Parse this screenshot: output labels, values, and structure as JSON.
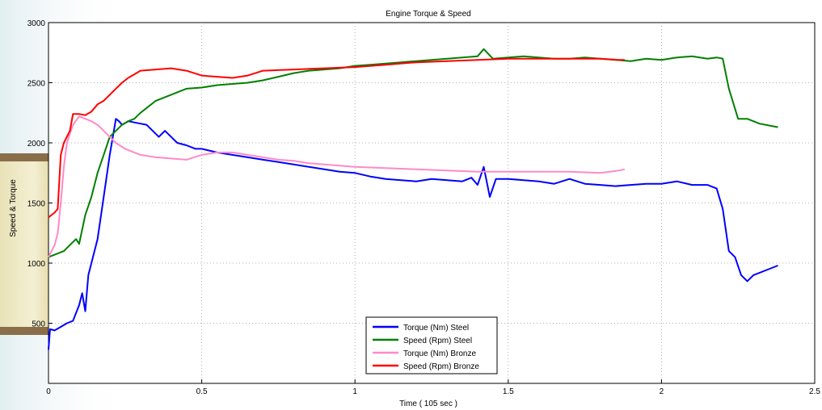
{
  "chart_data": {
    "type": "line",
    "title": "Engine Torque & Speed",
    "xlabel": "Time ( 105 sec )",
    "ylabel": "Speed & Torque",
    "xlim": [
      0,
      2.5
    ],
    "ylim": [
      0,
      3000
    ],
    "xticks": [
      0,
      0.5,
      1,
      1.5,
      2,
      2.5
    ],
    "xtick_labels": [
      "0",
      "0.5",
      "1",
      "1.5",
      "2",
      "2.5"
    ],
    "yticks": [
      500,
      1000,
      1500,
      2000,
      2500,
      3000
    ],
    "ytick_labels": [
      "500",
      "1000",
      "1500",
      "2000",
      "2500",
      "3000"
    ],
    "grid": true,
    "legend_position": "bottom-center",
    "series": [
      {
        "name": "Torque (Nm) Steel",
        "color": "#0000ff",
        "x": [
          0,
          0.005,
          0.02,
          0.04,
          0.06,
          0.08,
          0.1,
          0.11,
          0.12,
          0.13,
          0.14,
          0.16,
          0.18,
          0.2,
          0.22,
          0.23,
          0.24,
          0.26,
          0.28,
          0.3,
          0.32,
          0.34,
          0.36,
          0.38,
          0.4,
          0.42,
          0.45,
          0.48,
          0.5,
          0.55,
          0.6,
          0.65,
          0.7,
          0.75,
          0.8,
          0.85,
          0.9,
          0.95,
          1.0,
          1.05,
          1.1,
          1.15,
          1.2,
          1.25,
          1.3,
          1.35,
          1.38,
          1.4,
          1.42,
          1.44,
          1.46,
          1.5,
          1.55,
          1.6,
          1.65,
          1.7,
          1.75,
          1.8,
          1.85,
          1.9,
          1.95,
          2.0,
          2.05,
          2.1,
          2.15,
          2.18,
          2.2,
          2.22,
          2.24,
          2.26,
          2.28,
          2.3,
          2.35,
          2.38
        ],
        "y": [
          280,
          450,
          440,
          470,
          500,
          520,
          650,
          750,
          600,
          900,
          1000,
          1200,
          1550,
          1900,
          2200,
          2180,
          2150,
          2180,
          2170,
          2160,
          2150,
          2100,
          2050,
          2100,
          2050,
          2000,
          1980,
          1950,
          1950,
          1920,
          1900,
          1880,
          1860,
          1840,
          1820,
          1800,
          1780,
          1760,
          1750,
          1720,
          1700,
          1690,
          1680,
          1700,
          1690,
          1680,
          1710,
          1650,
          1800,
          1550,
          1700,
          1700,
          1690,
          1680,
          1660,
          1700,
          1660,
          1650,
          1640,
          1650,
          1660,
          1660,
          1680,
          1650,
          1650,
          1620,
          1450,
          1100,
          1050,
          900,
          850,
          900,
          950,
          980
        ]
      },
      {
        "name": "Speed (Rpm) Steel",
        "color": "#008000",
        "x": [
          0,
          0.01,
          0.03,
          0.05,
          0.07,
          0.09,
          0.1,
          0.12,
          0.14,
          0.16,
          0.18,
          0.2,
          0.22,
          0.24,
          0.26,
          0.28,
          0.3,
          0.35,
          0.4,
          0.45,
          0.5,
          0.55,
          0.6,
          0.65,
          0.7,
          0.75,
          0.8,
          0.85,
          0.9,
          0.95,
          1.0,
          1.05,
          1.1,
          1.15,
          1.2,
          1.25,
          1.3,
          1.35,
          1.4,
          1.42,
          1.45,
          1.5,
          1.55,
          1.6,
          1.65,
          1.7,
          1.75,
          1.8,
          1.85,
          1.9,
          1.95,
          2.0,
          2.05,
          2.1,
          2.15,
          2.18,
          2.2,
          2.22,
          2.25,
          2.28,
          2.32,
          2.36,
          2.38
        ],
        "y": [
          1050,
          1060,
          1080,
          1100,
          1150,
          1200,
          1160,
          1400,
          1550,
          1750,
          1900,
          2050,
          2100,
          2150,
          2180,
          2200,
          2250,
          2350,
          2400,
          2450,
          2460,
          2480,
          2490,
          2500,
          2520,
          2550,
          2580,
          2600,
          2610,
          2620,
          2640,
          2650,
          2660,
          2670,
          2680,
          2690,
          2700,
          2710,
          2720,
          2780,
          2700,
          2710,
          2720,
          2710,
          2700,
          2700,
          2710,
          2700,
          2690,
          2680,
          2700,
          2690,
          2710,
          2720,
          2700,
          2710,
          2700,
          2450,
          2200,
          2200,
          2160,
          2140,
          2130
        ]
      },
      {
        "name": "Torque (Nm) Bronze",
        "color": "#ff8ac8",
        "x": [
          0,
          0.01,
          0.02,
          0.03,
          0.04,
          0.05,
          0.06,
          0.08,
          0.1,
          0.12,
          0.14,
          0.16,
          0.18,
          0.2,
          0.22,
          0.25,
          0.3,
          0.35,
          0.4,
          0.45,
          0.5,
          0.55,
          0.6,
          0.65,
          0.7,
          0.75,
          0.8,
          0.85,
          0.9,
          0.95,
          1.0,
          1.1,
          1.2,
          1.3,
          1.4,
          1.5,
          1.6,
          1.7,
          1.8,
          1.86,
          1.88
        ],
        "y": [
          1050,
          1100,
          1150,
          1250,
          1500,
          1800,
          2000,
          2150,
          2220,
          2200,
          2180,
          2150,
          2100,
          2050,
          2000,
          1950,
          1900,
          1880,
          1870,
          1860,
          1900,
          1920,
          1920,
          1900,
          1880,
          1860,
          1850,
          1830,
          1820,
          1810,
          1800,
          1790,
          1780,
          1770,
          1760,
          1760,
          1760,
          1760,
          1750,
          1770,
          1780
        ]
      },
      {
        "name": "Speed (Rpm) Bronze",
        "color": "#ff0000",
        "x": [
          0,
          0.01,
          0.02,
          0.03,
          0.04,
          0.05,
          0.07,
          0.08,
          0.1,
          0.12,
          0.14,
          0.16,
          0.18,
          0.2,
          0.22,
          0.24,
          0.26,
          0.28,
          0.3,
          0.35,
          0.4,
          0.45,
          0.5,
          0.55,
          0.6,
          0.65,
          0.7,
          0.8,
          0.9,
          1.0,
          1.1,
          1.2,
          1.3,
          1.4,
          1.5,
          1.6,
          1.7,
          1.8,
          1.86,
          1.88
        ],
        "y": [
          1380,
          1400,
          1420,
          1450,
          1900,
          2000,
          2100,
          2240,
          2240,
          2230,
          2260,
          2320,
          2350,
          2400,
          2450,
          2500,
          2540,
          2570,
          2600,
          2610,
          2620,
          2600,
          2560,
          2550,
          2540,
          2560,
          2600,
          2610,
          2620,
          2630,
          2650,
          2670,
          2680,
          2690,
          2700,
          2700,
          2700,
          2700,
          2690,
          2690
        ]
      }
    ]
  }
}
